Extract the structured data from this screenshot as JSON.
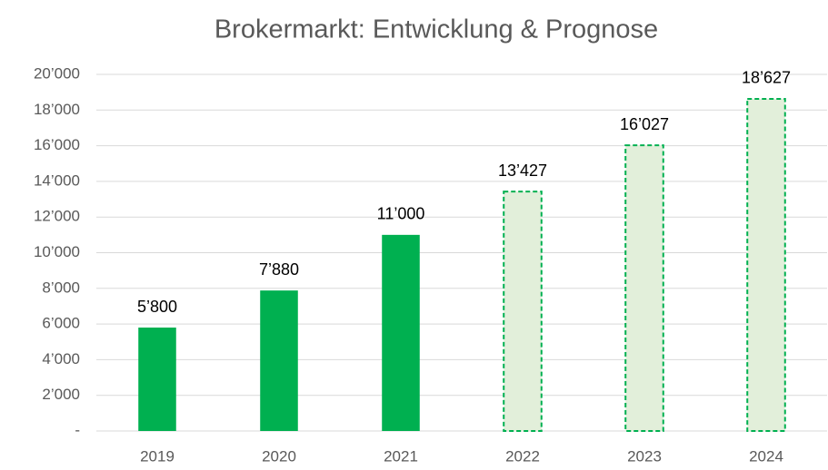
{
  "chart_data": {
    "type": "bar",
    "title": "Brokermarkt: Entwicklung & Prognose",
    "categories": [
      "2019",
      "2020",
      "2021",
      "2022",
      "2023",
      "2024"
    ],
    "values": [
      5800,
      7880,
      11000,
      13427,
      16027,
      18627
    ],
    "value_labels": [
      "5’800",
      "7’880",
      "11’000",
      "13’427",
      "16’027",
      "18’627"
    ],
    "colors": [
      "#00b050",
      "#00b050",
      "#00b050",
      "#e2efda",
      "#e2efda",
      "#e2efda"
    ],
    "border_colors": [
      "#00b050",
      "#00b050",
      "#00b050",
      "#00b050",
      "#00b050",
      "#00b050"
    ],
    "dashed": [
      false,
      false,
      false,
      true,
      true,
      true
    ],
    "ylim": [
      0,
      20000
    ],
    "yticks": [
      {
        "value": 0,
        "label": "-"
      },
      {
        "value": 2000,
        "label": "2’000"
      },
      {
        "value": 4000,
        "label": "4’000"
      },
      {
        "value": 6000,
        "label": "6’000"
      },
      {
        "value": 8000,
        "label": "8’000"
      },
      {
        "value": 10000,
        "label": "10’000"
      },
      {
        "value": 12000,
        "label": "12’000"
      },
      {
        "value": 14000,
        "label": "14’000"
      },
      {
        "value": 16000,
        "label": "16’000"
      },
      {
        "value": 18000,
        "label": "18’000"
      },
      {
        "value": 20000,
        "label": "20’000"
      }
    ],
    "grid": true
  }
}
